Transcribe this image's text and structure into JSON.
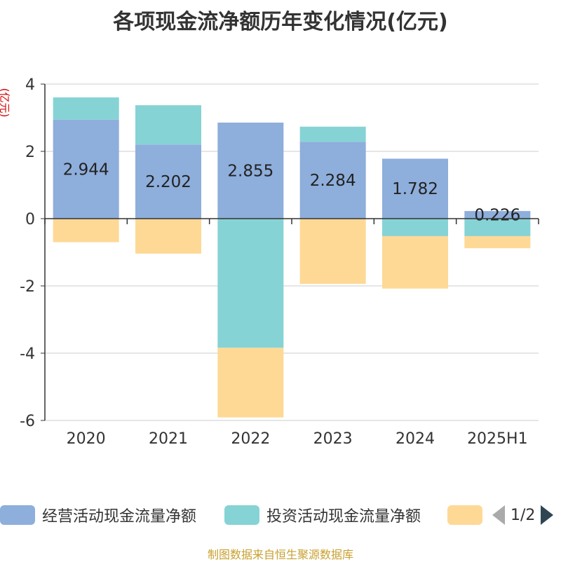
{
  "title": "各项现金流净额历年变化情况(亿元)",
  "y_unit": "(亿元)",
  "footer": "制图数据来自恒生聚源数据库",
  "colors": {
    "operating": "#8eaedb",
    "investing": "#86d3d5",
    "financing": "#fed996",
    "axis": "#333333",
    "grid": "#cccccc"
  },
  "legend": {
    "items": [
      {
        "label": "经营活动现金流量净额",
        "color": "#8eaedb"
      },
      {
        "label": "投资活动现金流量净额",
        "color": "#86d3d5"
      },
      {
        "label": "",
        "color": "#fed996"
      }
    ],
    "page": "1/2"
  },
  "chart_data": {
    "type": "bar",
    "stacked": true,
    "categories": [
      "2020",
      "2021",
      "2022",
      "2023",
      "2024",
      "2025H1"
    ],
    "ylim": [
      -6,
      4
    ],
    "yticks": [
      4,
      2,
      0,
      -2,
      -4,
      -6
    ],
    "grid": true,
    "series": [
      {
        "name": "经营活动现金流量净额",
        "color": "#8eaedb",
        "values": [
          2.944,
          2.202,
          2.855,
          2.284,
          1.782,
          0.226
        ],
        "labels": [
          "2.944",
          "2.202",
          "2.855",
          "2.284",
          "1.782",
          "0.226"
        ]
      },
      {
        "name": "投资活动现金流量净额",
        "color": "#86d3d5",
        "values": [
          0.66,
          1.17,
          -3.84,
          0.45,
          -0.52,
          -0.52
        ]
      },
      {
        "color": "#fed996",
        "values": [
          -0.7,
          -1.04,
          -2.07,
          -1.94,
          -1.56,
          -0.36
        ]
      }
    ]
  }
}
